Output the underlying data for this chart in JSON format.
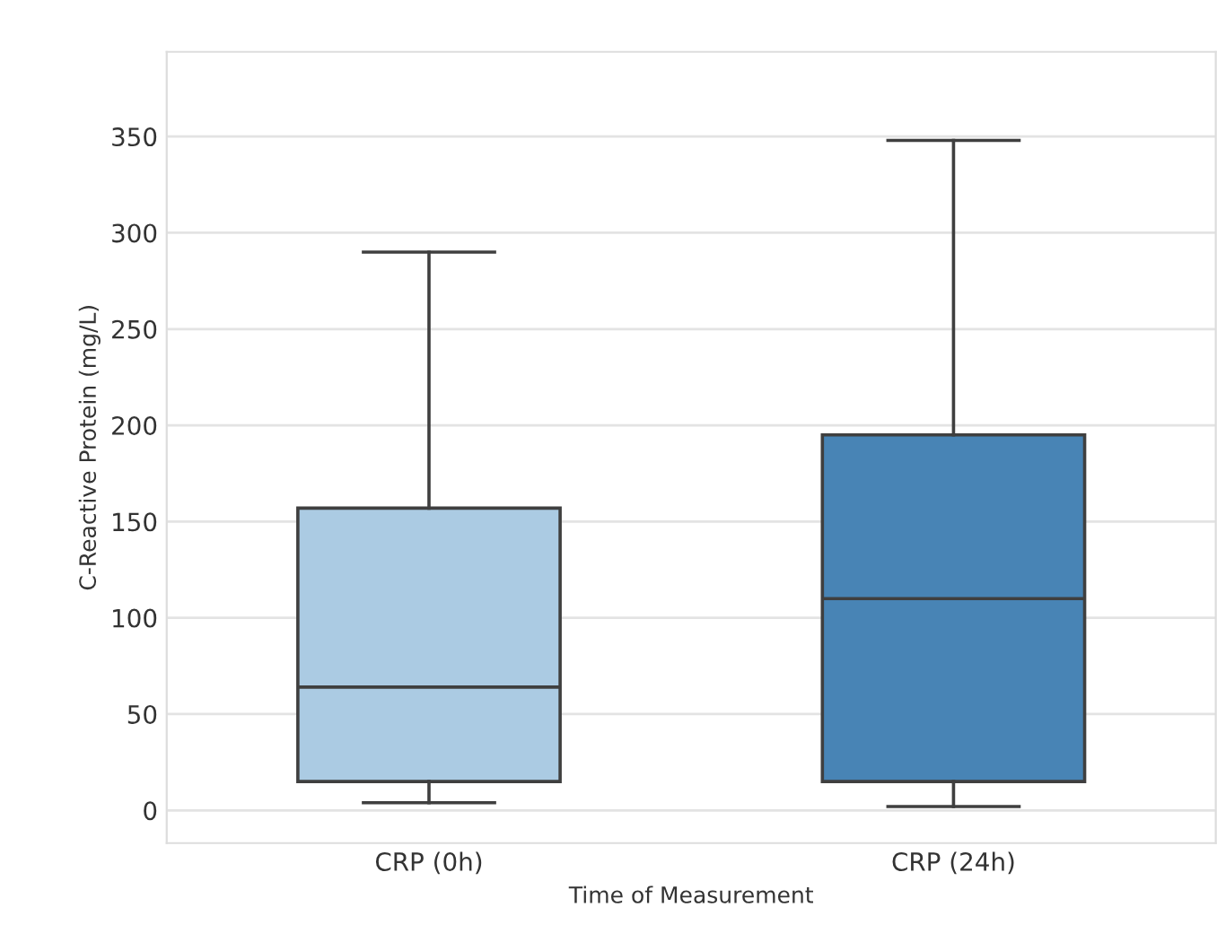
{
  "chart_data": {
    "type": "box",
    "xlabel": "Time of Measurement",
    "ylabel": "C-Reactive Protein (mg/L)",
    "categories": [
      "CRP (0h)",
      "CRP (24h)"
    ],
    "colors": [
      "#abcbe3",
      "#4884b5"
    ],
    "boxes": [
      {
        "low": 4,
        "q1": 15,
        "median": 64,
        "q3": 157,
        "high": 290
      },
      {
        "low": 2,
        "q1": 15,
        "median": 110,
        "q3": 195,
        "high": 348
      }
    ],
    "ylim": [
      -17,
      394
    ],
    "yticks": [
      0,
      50,
      100,
      150,
      200,
      250,
      300,
      350
    ],
    "grid": "y"
  }
}
